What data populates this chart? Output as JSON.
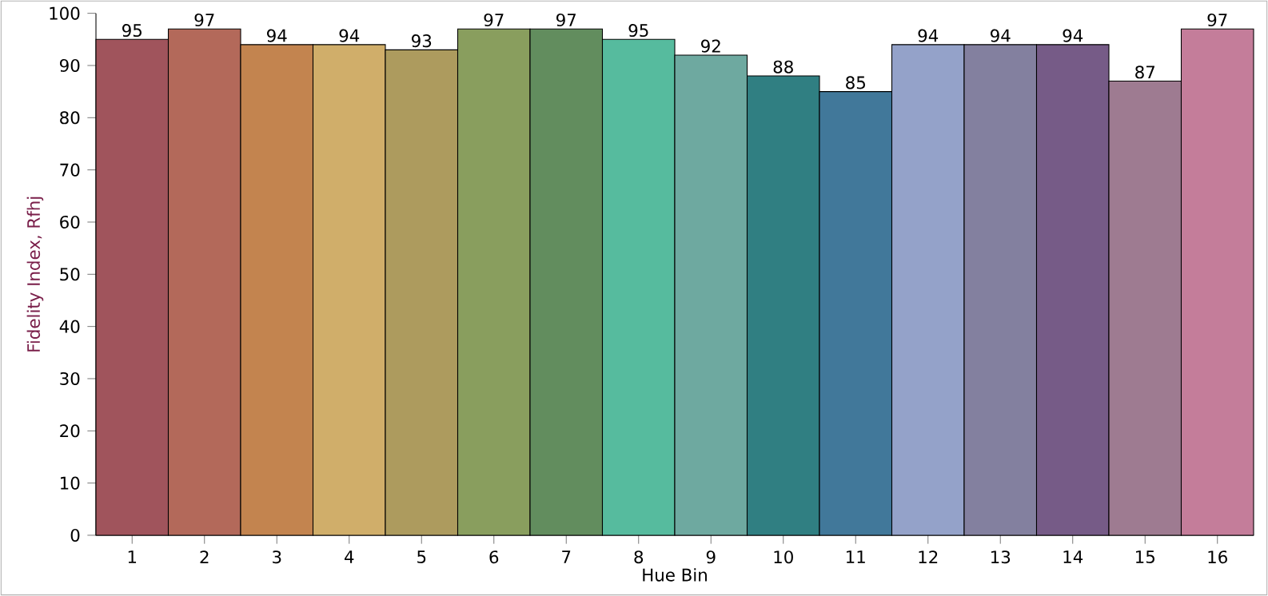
{
  "chart_data": {
    "type": "bar",
    "xlabel": "Hue Bin",
    "ylabel": "Fidelity Index, Rfhj",
    "categories": [
      "1",
      "2",
      "3",
      "4",
      "5",
      "6",
      "7",
      "8",
      "9",
      "10",
      "11",
      "12",
      "13",
      "14",
      "15",
      "16"
    ],
    "values": [
      95,
      97,
      94,
      94,
      93,
      97,
      97,
      95,
      92,
      88,
      85,
      94,
      94,
      94,
      87,
      97
    ],
    "colors": [
      "#a0545c",
      "#b3695a",
      "#c3844f",
      "#d0ae6a",
      "#ad9b5e",
      "#899e5e",
      "#628d5e",
      "#56bb9e",
      "#6ea9a0",
      "#307f82",
      "#41789a",
      "#94a2c9",
      "#83809f",
      "#765b87",
      "#9e7b91",
      "#c47d9a"
    ],
    "ylim": [
      0,
      100
    ],
    "yticks": [
      0,
      10,
      20,
      30,
      40,
      50,
      60,
      70,
      80,
      90,
      100
    ],
    "data_labels": true
  }
}
